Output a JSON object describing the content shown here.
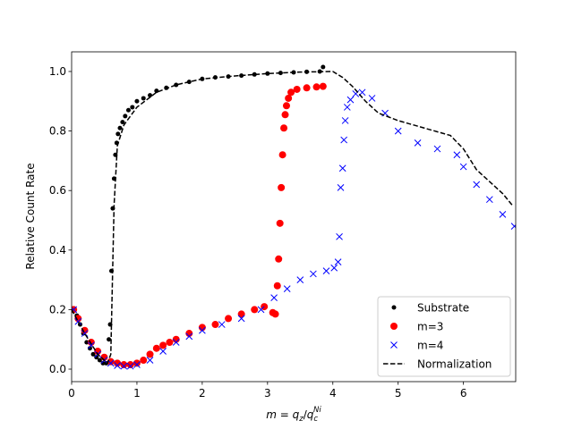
{
  "chart_data": {
    "type": "scatter",
    "ylabel": "Relative Count Rate",
    "xlabel": [
      "m",
      " = ",
      "q",
      "z",
      "/",
      "q",
      "c",
      "Ni"
    ],
    "xlim": [
      0,
      6.8
    ],
    "ylim": [
      -0.042,
      1.066
    ],
    "xticks": [
      0,
      1,
      2,
      3,
      4,
      5,
      6
    ],
    "yticks": [
      {
        "value": 0,
        "label": "0.0"
      },
      0.2,
      0.4,
      0.6,
      0.8,
      {
        "value": 1,
        "label": "1.0"
      }
    ],
    "legend": "lower right",
    "series": [
      {
        "name": "Substrate",
        "color": "#000000",
        "marker": "dot",
        "x": [
          0.03,
          0.08,
          0.13,
          0.18,
          0.23,
          0.28,
          0.33,
          0.38,
          0.43,
          0.48,
          0.53,
          0.57,
          0.59,
          0.61,
          0.63,
          0.65,
          0.67,
          0.69,
          0.71,
          0.74,
          0.78,
          0.82,
          0.87,
          0.93,
          1.0,
          1.1,
          1.2,
          1.3,
          1.45,
          1.6,
          1.8,
          2.0,
          2.2,
          2.4,
          2.6,
          2.8,
          3.0,
          3.2,
          3.4,
          3.6,
          3.8,
          3.85
        ],
        "values": [
          0.2,
          0.18,
          0.15,
          0.12,
          0.09,
          0.07,
          0.05,
          0.04,
          0.03,
          0.02,
          0.02,
          0.1,
          0.15,
          0.33,
          0.54,
          0.64,
          0.72,
          0.76,
          0.79,
          0.81,
          0.83,
          0.85,
          0.87,
          0.88,
          0.9,
          0.91,
          0.92,
          0.935,
          0.945,
          0.955,
          0.965,
          0.975,
          0.98,
          0.983,
          0.986,
          0.99,
          0.993,
          0.995,
          0.997,
          0.999,
          1.0,
          1.015
        ]
      },
      {
        "name": "m=3",
        "color": "#ff0000",
        "marker": "circle",
        "x": [
          0.03,
          0.1,
          0.2,
          0.3,
          0.4,
          0.5,
          0.6,
          0.7,
          0.8,
          0.9,
          1.0,
          1.1,
          1.2,
          1.3,
          1.4,
          1.5,
          1.6,
          1.8,
          2.0,
          2.2,
          2.4,
          2.6,
          2.8,
          2.95,
          3.08,
          3.12,
          3.15,
          3.17,
          3.19,
          3.21,
          3.23,
          3.25,
          3.27,
          3.29,
          3.32,
          3.36,
          3.45,
          3.6,
          3.75,
          3.85
        ],
        "values": [
          0.2,
          0.17,
          0.13,
          0.09,
          0.06,
          0.04,
          0.025,
          0.02,
          0.015,
          0.015,
          0.02,
          0.03,
          0.05,
          0.07,
          0.08,
          0.09,
          0.1,
          0.12,
          0.14,
          0.15,
          0.17,
          0.185,
          0.2,
          0.21,
          0.19,
          0.185,
          0.28,
          0.37,
          0.49,
          0.61,
          0.72,
          0.81,
          0.855,
          0.885,
          0.91,
          0.93,
          0.94,
          0.945,
          0.948,
          0.95
        ]
      },
      {
        "name": "m=4",
        "color": "#0000ff",
        "marker": "x",
        "x": [
          0.03,
          0.1,
          0.2,
          0.3,
          0.4,
          0.5,
          0.6,
          0.7,
          0.8,
          0.9,
          1.0,
          1.2,
          1.4,
          1.6,
          1.8,
          2.0,
          2.3,
          2.6,
          2.9,
          3.1,
          3.3,
          3.5,
          3.7,
          3.9,
          4.02,
          4.08,
          4.1,
          4.12,
          4.15,
          4.17,
          4.19,
          4.22,
          4.27,
          4.35,
          4.45,
          4.6,
          4.8,
          5.0,
          5.3,
          5.6,
          5.9,
          6.0,
          6.2,
          6.4,
          6.6,
          6.78
        ],
        "values": [
          0.2,
          0.16,
          0.12,
          0.08,
          0.05,
          0.03,
          0.02,
          0.012,
          0.01,
          0.01,
          0.015,
          0.03,
          0.06,
          0.09,
          0.11,
          0.13,
          0.15,
          0.17,
          0.2,
          0.24,
          0.27,
          0.3,
          0.32,
          0.33,
          0.34,
          0.36,
          0.445,
          0.61,
          0.675,
          0.77,
          0.835,
          0.88,
          0.905,
          0.925,
          0.93,
          0.91,
          0.86,
          0.8,
          0.76,
          0.74,
          0.72,
          0.68,
          0.62,
          0.57,
          0.52,
          0.48
        ]
      },
      {
        "name": "Normalization",
        "color": "#000000",
        "marker": "dashed-line",
        "x": [
          0,
          0.2,
          0.4,
          0.55,
          0.6,
          0.65,
          0.7,
          0.8,
          1.0,
          1.3,
          1.6,
          2.0,
          2.5,
          3.0,
          3.5,
          4.0,
          4.15,
          4.3,
          4.5,
          4.7,
          5.0,
          5.4,
          5.8,
          6.0,
          6.2,
          6.4,
          6.6,
          6.75
        ],
        "values": [
          0.2,
          0.12,
          0.05,
          0.02,
          0.05,
          0.55,
          0.75,
          0.82,
          0.88,
          0.93,
          0.955,
          0.975,
          0.985,
          0.993,
          0.998,
          1.0,
          0.98,
          0.95,
          0.9,
          0.86,
          0.835,
          0.81,
          0.785,
          0.74,
          0.67,
          0.63,
          0.59,
          0.55
        ]
      }
    ]
  }
}
